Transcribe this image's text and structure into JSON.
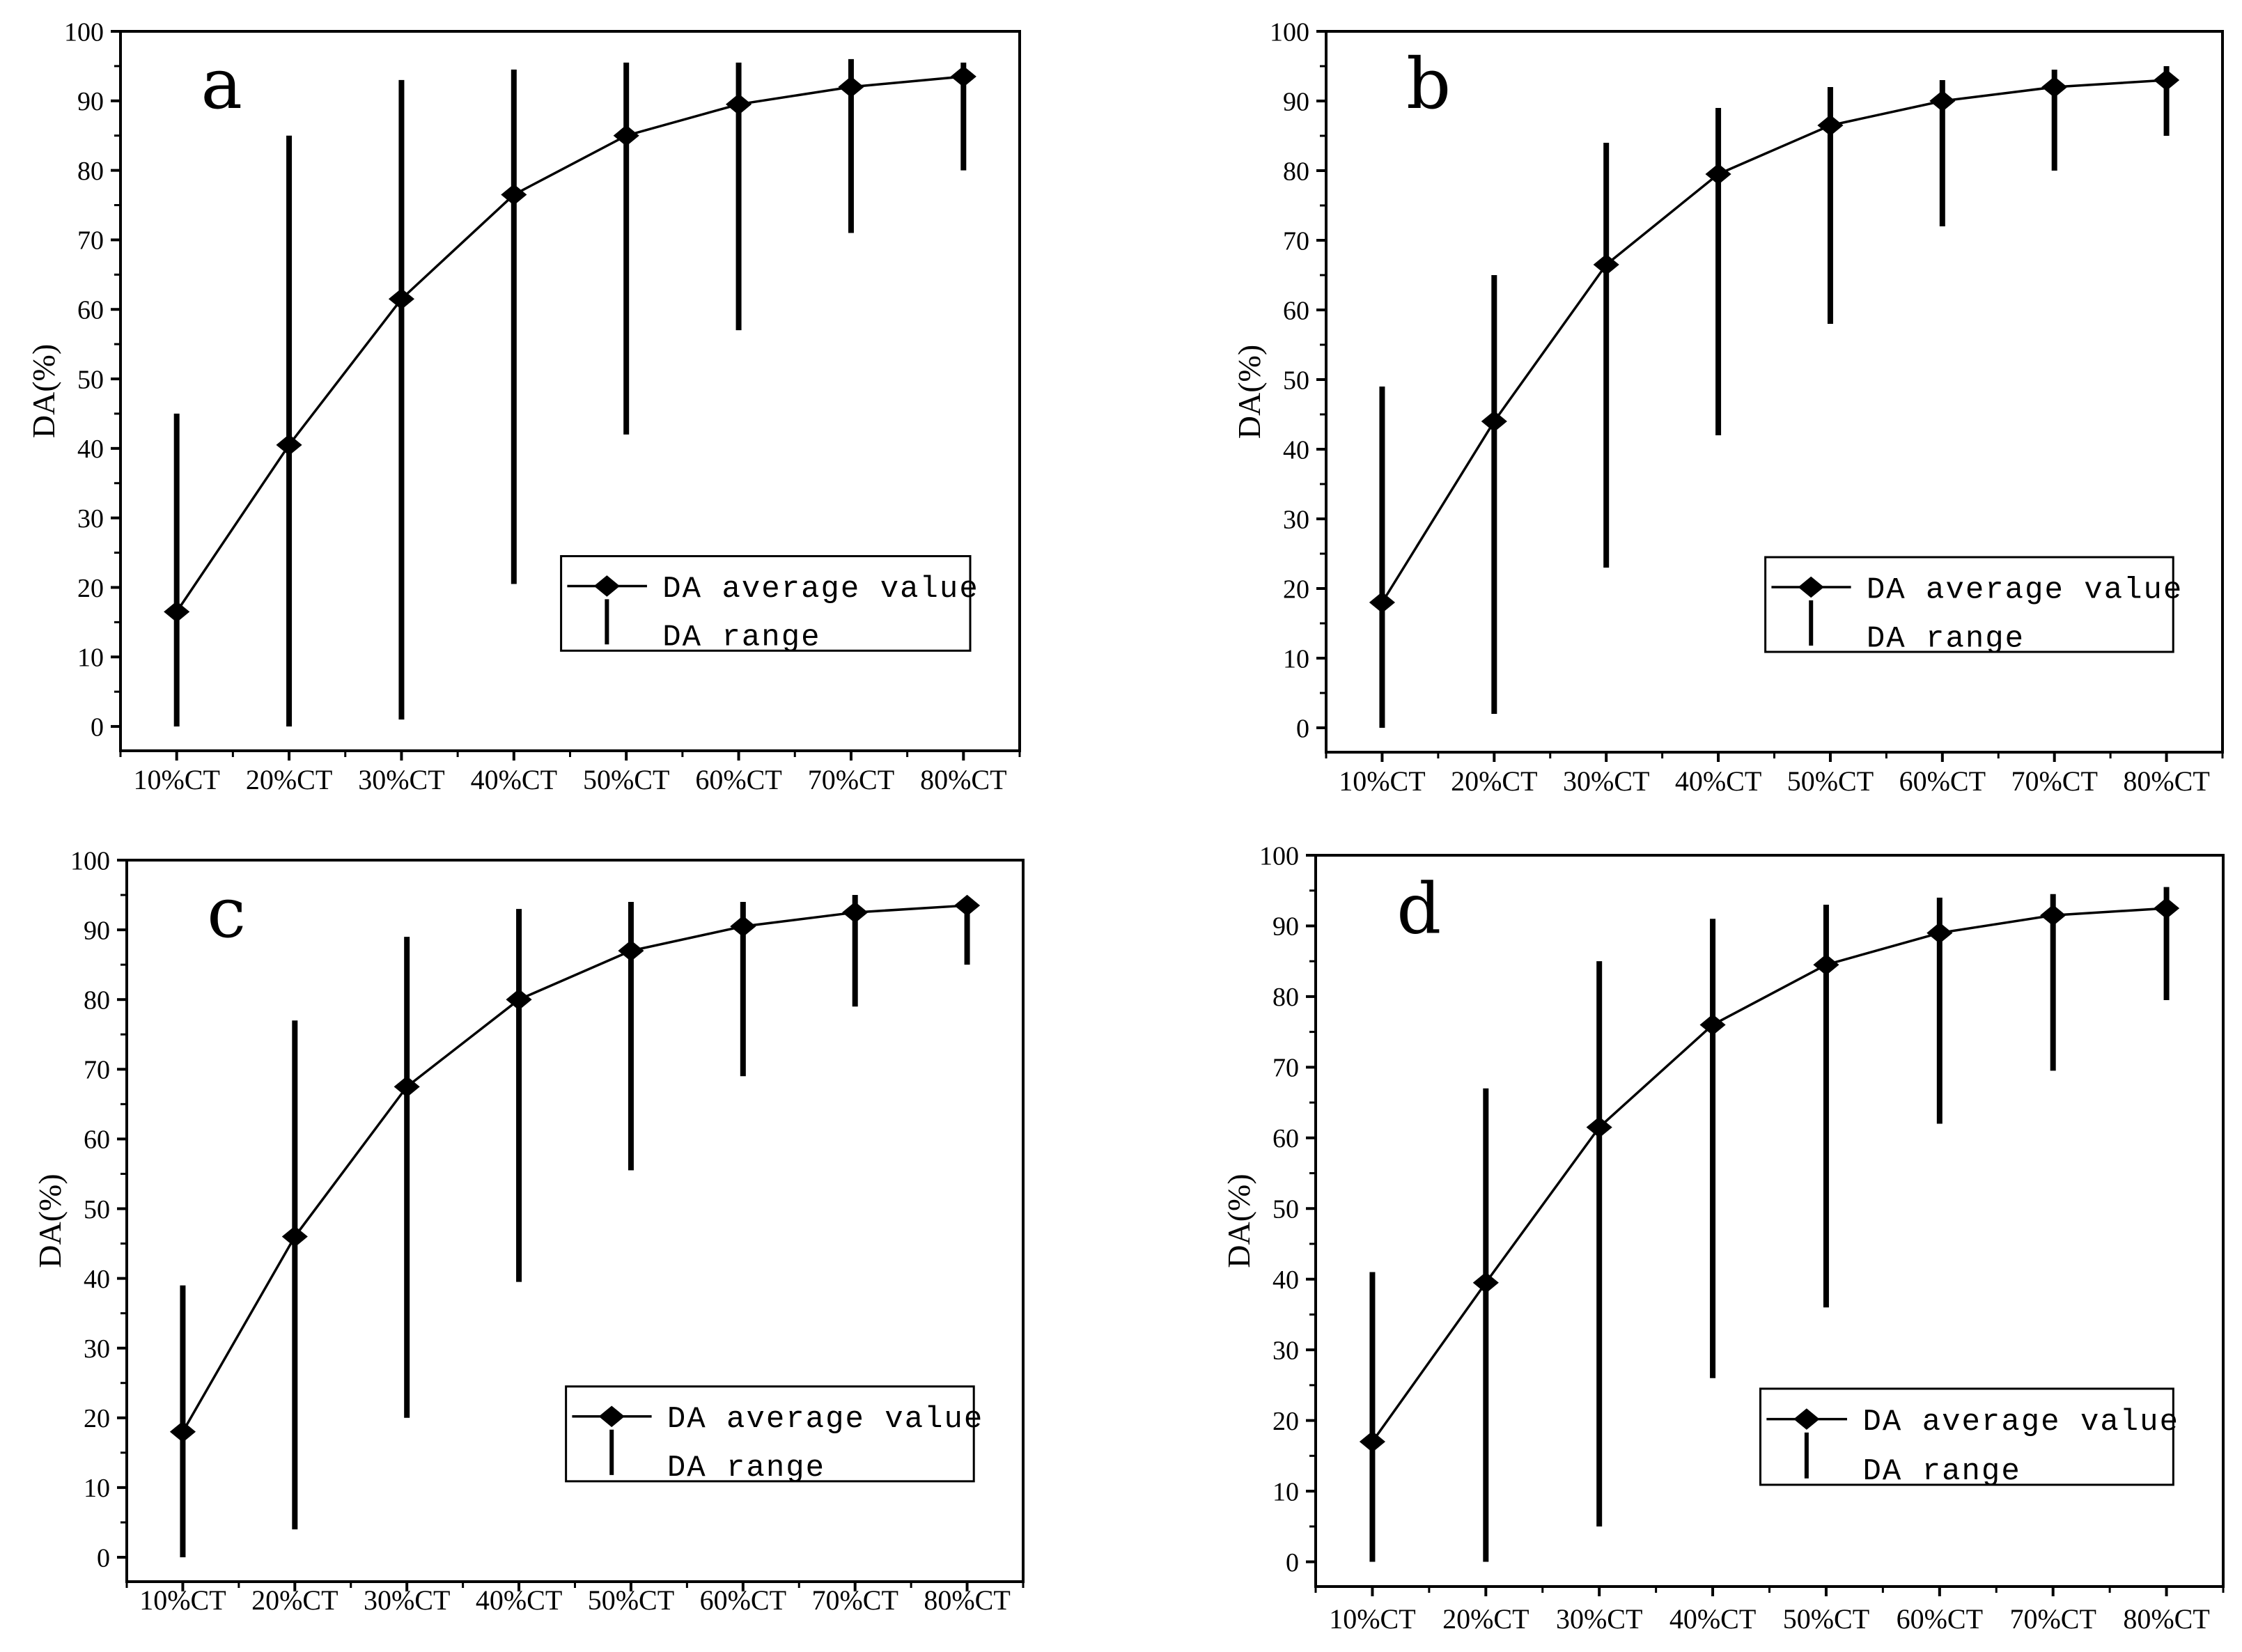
{
  "page": {
    "background": "#ffffff",
    "ink": "#000000"
  },
  "chart_data": [
    {
      "type": "line",
      "panel_label": "a",
      "xlabel": "",
      "ylabel": "DA(%)",
      "categories": [
        "10%CT",
        "20%CT",
        "30%CT",
        "40%CT",
        "50%CT",
        "60%CT",
        "70%CT",
        "80%CT"
      ],
      "y_ticks": [
        0,
        10,
        20,
        30,
        40,
        50,
        60,
        70,
        80,
        90,
        100
      ],
      "ylim": [
        -3.5,
        100
      ],
      "grid": false,
      "series": [
        {
          "name": "DA average value",
          "marker": "diamond",
          "values": [
            16.5,
            40.5,
            61.5,
            76.5,
            85,
            89.5,
            92,
            93.5
          ]
        }
      ],
      "range": {
        "name": "DA range",
        "min": [
          0,
          0,
          1,
          20.5,
          42,
          57,
          71,
          80
        ],
        "max": [
          45,
          85,
          93,
          94.5,
          95.5,
          95.5,
          96,
          95.5
        ]
      },
      "legend": {
        "position": "inside-lower-right",
        "average_label": "DA average value",
        "range_label": "DA range"
      }
    },
    {
      "type": "line",
      "panel_label": "b",
      "xlabel": "",
      "ylabel": "DA(%)",
      "categories": [
        "10%CT",
        "20%CT",
        "30%CT",
        "40%CT",
        "50%CT",
        "60%CT",
        "70%CT",
        "80%CT"
      ],
      "y_ticks": [
        0,
        10,
        20,
        30,
        40,
        50,
        60,
        70,
        80,
        90,
        100
      ],
      "ylim": [
        -3.5,
        100
      ],
      "grid": false,
      "series": [
        {
          "name": "DA average value",
          "marker": "diamond",
          "values": [
            18,
            44,
            66.5,
            79.5,
            86.5,
            90,
            92,
            93
          ]
        }
      ],
      "range": {
        "name": "DA range",
        "min": [
          0,
          2,
          23,
          42,
          58,
          72,
          80,
          85
        ],
        "max": [
          49,
          65,
          84,
          89,
          92,
          93,
          94.5,
          95
        ]
      },
      "legend": {
        "position": "inside-lower-right",
        "average_label": "DA average value",
        "range_label": "DA range"
      }
    },
    {
      "type": "line",
      "panel_label": "c",
      "xlabel": "",
      "ylabel": "DA(%)",
      "categories": [
        "10%CT",
        "20%CT",
        "30%CT",
        "40%CT",
        "50%CT",
        "60%CT",
        "70%CT",
        "80%CT"
      ],
      "y_ticks": [
        0,
        10,
        20,
        30,
        40,
        50,
        60,
        70,
        80,
        90,
        100
      ],
      "ylim": [
        -3.5,
        100
      ],
      "grid": false,
      "series": [
        {
          "name": "DA average value",
          "marker": "diamond",
          "values": [
            18,
            46,
            67.5,
            80,
            87,
            90.5,
            92.5,
            93.5
          ]
        }
      ],
      "range": {
        "name": "DA range",
        "min": [
          0,
          4,
          20,
          39.5,
          55.5,
          69,
          79,
          85
        ],
        "max": [
          39,
          77,
          89,
          93,
          94,
          94,
          95,
          94.5
        ]
      },
      "legend": {
        "position": "inside-lower-right",
        "average_label": "DA average value",
        "range_label": "DA range"
      }
    },
    {
      "type": "line",
      "panel_label": "d",
      "xlabel": "",
      "ylabel": "DA(%)",
      "categories": [
        "10%CT",
        "20%CT",
        "30%CT",
        "40%CT",
        "50%CT",
        "60%CT",
        "70%CT",
        "80%CT"
      ],
      "y_ticks": [
        0,
        10,
        20,
        30,
        40,
        50,
        60,
        70,
        80,
        90,
        100
      ],
      "ylim": [
        -3.5,
        100
      ],
      "grid": false,
      "series": [
        {
          "name": "DA average value",
          "marker": "diamond",
          "values": [
            17,
            39.5,
            61.5,
            76,
            84.5,
            89,
            91.5,
            92.5
          ]
        }
      ],
      "range": {
        "name": "DA range",
        "min": [
          0,
          0,
          5,
          26,
          36,
          62,
          69.5,
          79.5
        ],
        "max": [
          41,
          67,
          85,
          91,
          93,
          94,
          94.5,
          95.5
        ]
      },
      "legend": {
        "position": "inside-lower-right",
        "average_label": "DA average value",
        "range_label": "DA range"
      }
    }
  ]
}
